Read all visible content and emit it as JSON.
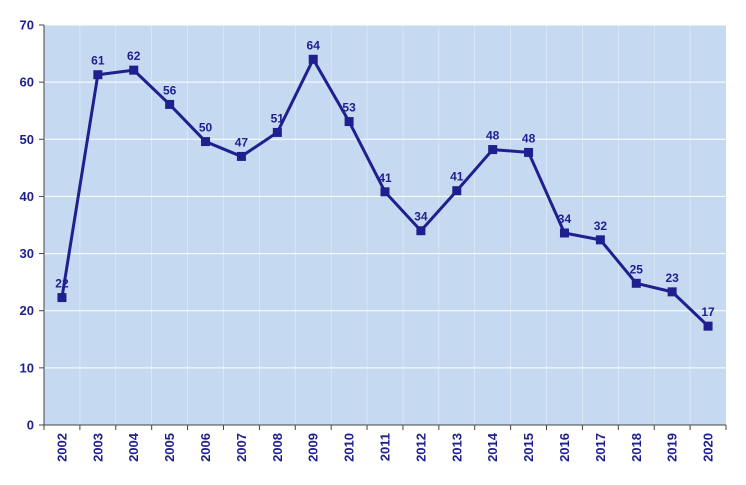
{
  "chart_data": {
    "type": "line",
    "title": "",
    "xlabel": "",
    "ylabel": "",
    "categories": [
      "2002",
      "2003",
      "2004",
      "2005",
      "2006",
      "2007",
      "2008",
      "2009",
      "2010",
      "2011",
      "2012",
      "2013",
      "2014",
      "2015",
      "2016",
      "2017",
      "2018",
      "2019",
      "2020"
    ],
    "values": [
      22.3,
      61.3,
      62.1,
      56.1,
      49.6,
      47.0,
      51.2,
      64.0,
      53.1,
      40.8,
      34.0,
      41.0,
      48.2,
      47.7,
      33.6,
      32.4,
      24.8,
      23.3,
      17.3
    ],
    "data_labels": [
      "22",
      "61",
      "62",
      "56",
      "50",
      "47",
      "51",
      "64",
      "53",
      "41",
      "34",
      "41",
      "48",
      "48",
      "34",
      "32",
      "25",
      "23",
      "17"
    ],
    "ylim": [
      0,
      70
    ],
    "yticks": [
      0,
      10,
      20,
      30,
      40,
      50,
      60,
      70
    ],
    "grid": true,
    "legend": "none",
    "colors": {
      "plot_background": "#c5d9f1",
      "grid": "#ffffff",
      "line": "#1f1f8f",
      "marker": "#1f1f8f",
      "text": "#1f1f8f"
    }
  }
}
